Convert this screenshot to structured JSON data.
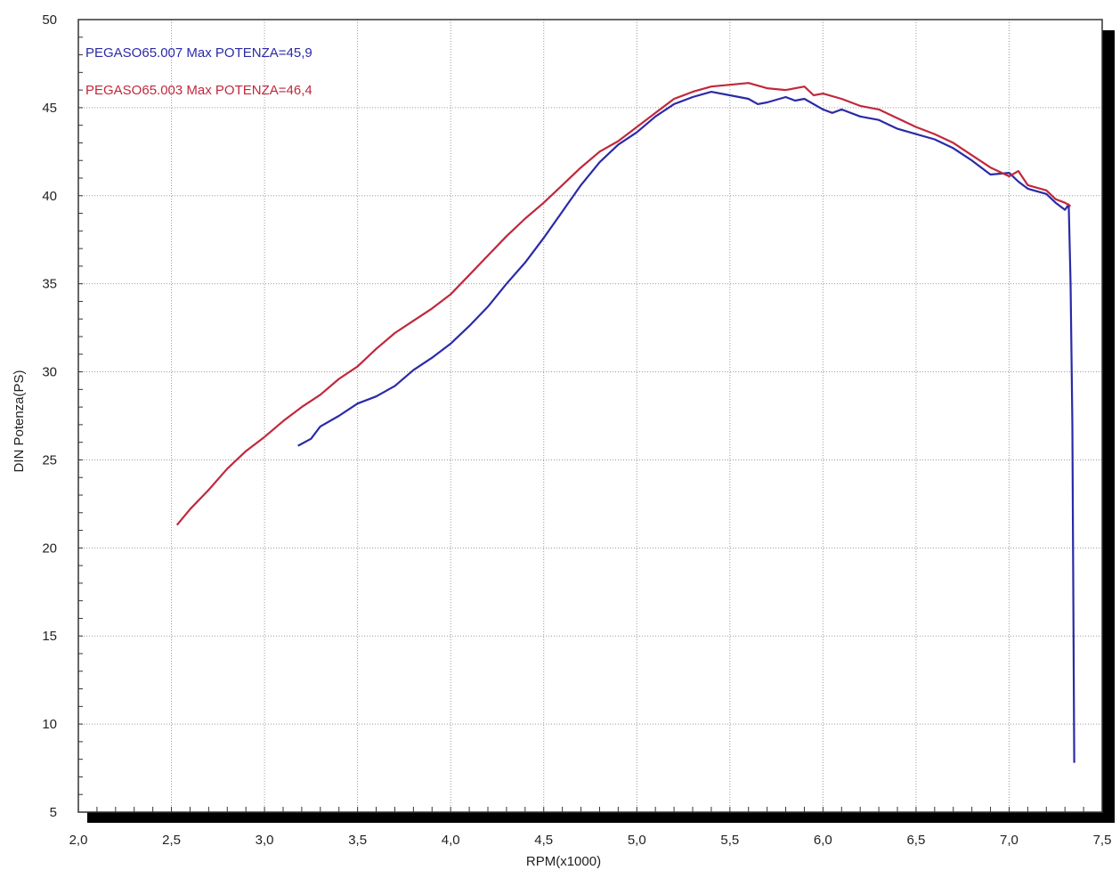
{
  "chart_data": {
    "type": "line",
    "xlabel": "RPM(x1000)",
    "ylabel": "DIN Potenza(PS)",
    "xlim": [
      2.0,
      7.5
    ],
    "ylim": [
      5,
      50
    ],
    "x_ticks": [
      "2,0",
      "2,5",
      "3,0",
      "3,5",
      "4,0",
      "4,5",
      "5,0",
      "5,5",
      "6,0",
      "6,5",
      "7,0",
      "7,5"
    ],
    "y_ticks": [
      "5",
      "10",
      "15",
      "20",
      "25",
      "30",
      "35",
      "40",
      "45",
      "50"
    ],
    "grid": true,
    "legend_position": "top-left",
    "legend": [
      {
        "text": "PEGASO65.007  Max POTENZA=45,9",
        "color": "#2a2aa8"
      },
      {
        "text": "PEGASO65.003  Max POTENZA=46,4",
        "color": "#c0283c"
      }
    ],
    "series": [
      {
        "color": "#2a2aa8",
        "points": [
          [
            3.18,
            25.8
          ],
          [
            3.25,
            26.2
          ],
          [
            3.3,
            26.9
          ],
          [
            3.4,
            27.5
          ],
          [
            3.5,
            28.2
          ],
          [
            3.6,
            28.6
          ],
          [
            3.7,
            29.2
          ],
          [
            3.8,
            30.1
          ],
          [
            3.9,
            30.8
          ],
          [
            4.0,
            31.6
          ],
          [
            4.1,
            32.6
          ],
          [
            4.2,
            33.7
          ],
          [
            4.3,
            35.0
          ],
          [
            4.4,
            36.2
          ],
          [
            4.5,
            37.6
          ],
          [
            4.6,
            39.1
          ],
          [
            4.7,
            40.6
          ],
          [
            4.8,
            41.9
          ],
          [
            4.9,
            42.9
          ],
          [
            5.0,
            43.6
          ],
          [
            5.1,
            44.5
          ],
          [
            5.2,
            45.2
          ],
          [
            5.3,
            45.6
          ],
          [
            5.4,
            45.9
          ],
          [
            5.5,
            45.7
          ],
          [
            5.6,
            45.5
          ],
          [
            5.65,
            45.2
          ],
          [
            5.7,
            45.3
          ],
          [
            5.8,
            45.6
          ],
          [
            5.85,
            45.4
          ],
          [
            5.9,
            45.5
          ],
          [
            6.0,
            44.9
          ],
          [
            6.05,
            44.7
          ],
          [
            6.1,
            44.9
          ],
          [
            6.2,
            44.5
          ],
          [
            6.3,
            44.3
          ],
          [
            6.4,
            43.8
          ],
          [
            6.5,
            43.5
          ],
          [
            6.6,
            43.2
          ],
          [
            6.7,
            42.7
          ],
          [
            6.8,
            42.0
          ],
          [
            6.9,
            41.2
          ],
          [
            7.0,
            41.3
          ],
          [
            7.05,
            40.8
          ],
          [
            7.1,
            40.4
          ],
          [
            7.2,
            40.1
          ],
          [
            7.25,
            39.6
          ],
          [
            7.3,
            39.2
          ],
          [
            7.32,
            39.5
          ],
          [
            7.33,
            35.0
          ],
          [
            7.34,
            27.0
          ],
          [
            7.35,
            7.8
          ]
        ]
      },
      {
        "color": "#c0283c",
        "points": [
          [
            2.53,
            21.3
          ],
          [
            2.6,
            22.2
          ],
          [
            2.7,
            23.3
          ],
          [
            2.8,
            24.5
          ],
          [
            2.9,
            25.5
          ],
          [
            3.0,
            26.3
          ],
          [
            3.1,
            27.2
          ],
          [
            3.2,
            28.0
          ],
          [
            3.3,
            28.7
          ],
          [
            3.4,
            29.6
          ],
          [
            3.5,
            30.3
          ],
          [
            3.6,
            31.3
          ],
          [
            3.7,
            32.2
          ],
          [
            3.8,
            32.9
          ],
          [
            3.9,
            33.6
          ],
          [
            4.0,
            34.4
          ],
          [
            4.1,
            35.5
          ],
          [
            4.2,
            36.6
          ],
          [
            4.3,
            37.7
          ],
          [
            4.4,
            38.7
          ],
          [
            4.5,
            39.6
          ],
          [
            4.6,
            40.6
          ],
          [
            4.7,
            41.6
          ],
          [
            4.8,
            42.5
          ],
          [
            4.9,
            43.1
          ],
          [
            5.0,
            43.9
          ],
          [
            5.1,
            44.7
          ],
          [
            5.2,
            45.5
          ],
          [
            5.3,
            45.9
          ],
          [
            5.4,
            46.2
          ],
          [
            5.5,
            46.3
          ],
          [
            5.6,
            46.4
          ],
          [
            5.7,
            46.1
          ],
          [
            5.8,
            46.0
          ],
          [
            5.9,
            46.2
          ],
          [
            5.95,
            45.7
          ],
          [
            6.0,
            45.8
          ],
          [
            6.1,
            45.5
          ],
          [
            6.2,
            45.1
          ],
          [
            6.3,
            44.9
          ],
          [
            6.4,
            44.4
          ],
          [
            6.5,
            43.9
          ],
          [
            6.6,
            43.5
          ],
          [
            6.7,
            43.0
          ],
          [
            6.8,
            42.3
          ],
          [
            6.9,
            41.6
          ],
          [
            7.0,
            41.1
          ],
          [
            7.05,
            41.4
          ],
          [
            7.1,
            40.6
          ],
          [
            7.2,
            40.3
          ],
          [
            7.25,
            39.8
          ],
          [
            7.3,
            39.6
          ],
          [
            7.33,
            39.4
          ]
        ]
      }
    ]
  }
}
